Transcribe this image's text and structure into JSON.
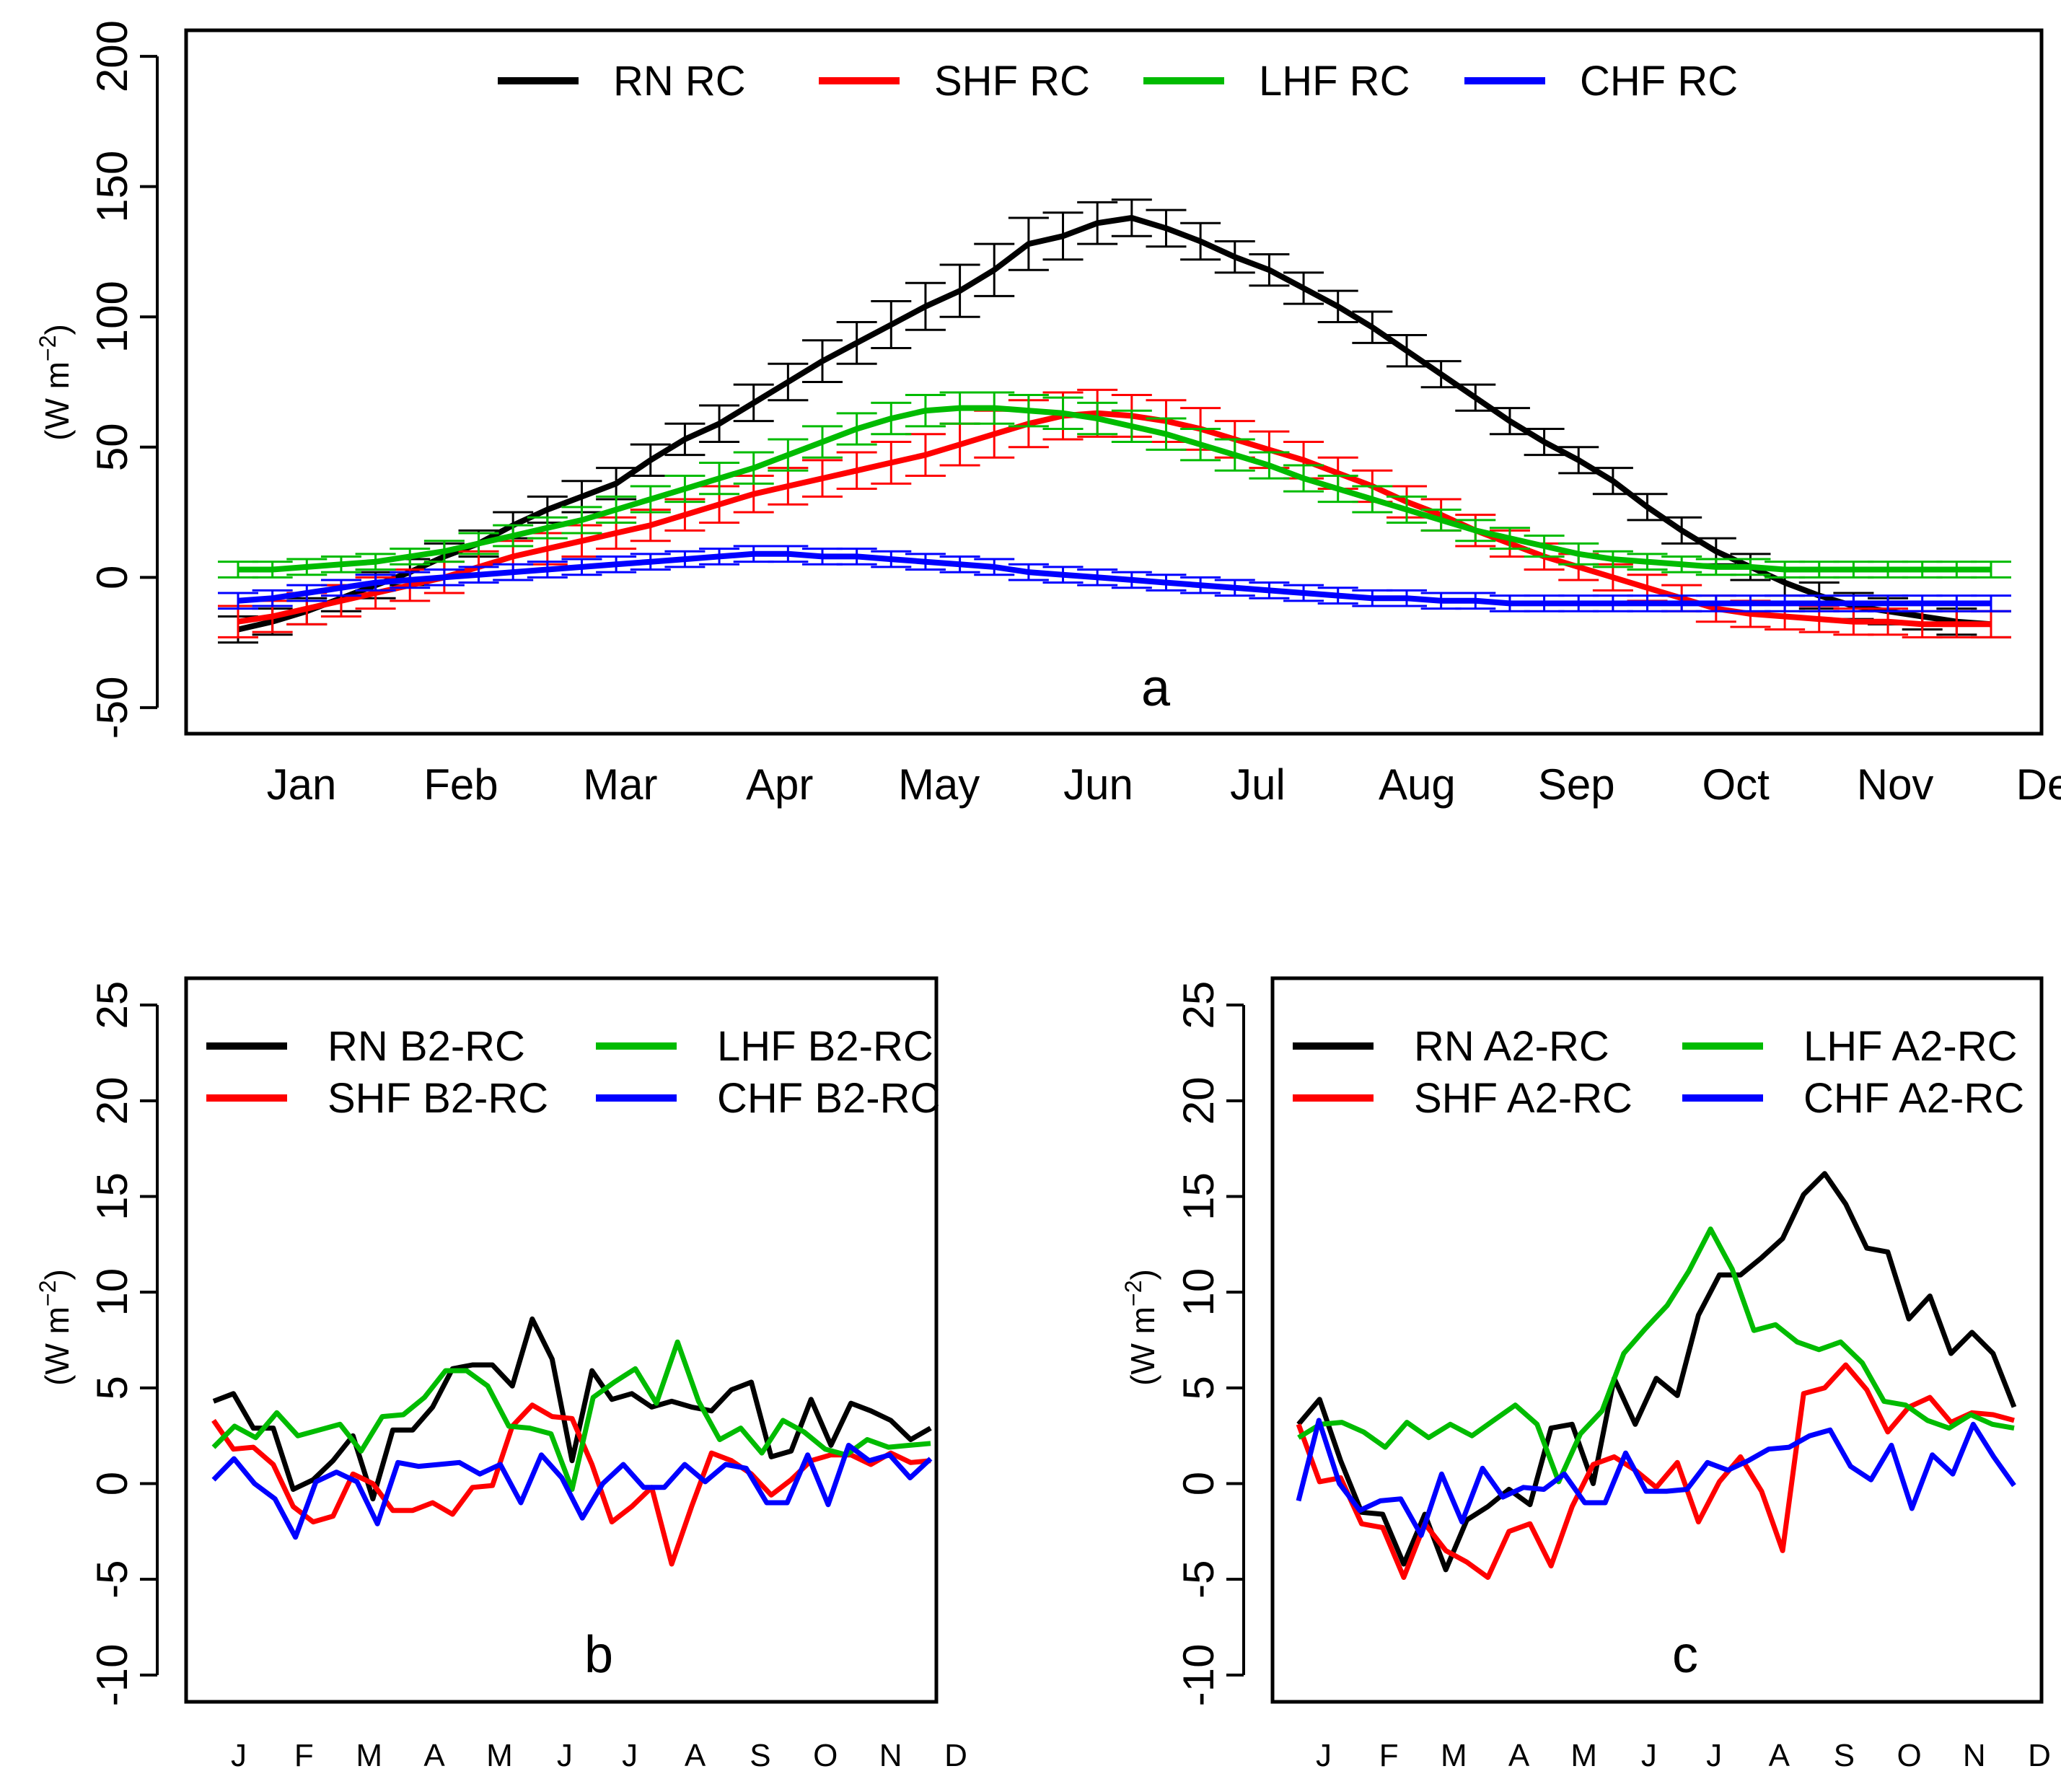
{
  "chart_data": [
    {
      "id": "a",
      "type": "line",
      "label": "a",
      "ylabel": "(W m⁻²)",
      "ylabel_base": "(W m",
      "ylabel_exp": "−2",
      "ylabel_close": ")",
      "ylim": [
        -50,
        200
      ],
      "yticks": [
        -50,
        0,
        50,
        100,
        150,
        200
      ],
      "month_labels": [
        "Jan",
        "Feb",
        "Mar",
        "Apr",
        "May",
        "Jun",
        "Jul",
        "Aug",
        "Sep",
        "Oct",
        "Nov",
        "Dec"
      ],
      "x_count": 36,
      "legend_position": "top",
      "series": [
        {
          "name": "RN RC",
          "color": "#000000",
          "values": [
            -20,
            -17,
            -13,
            -8,
            -3,
            2,
            8,
            13,
            20,
            26,
            31,
            36,
            45,
            53,
            59,
            67,
            75,
            83,
            90,
            97,
            104,
            110,
            118,
            128,
            131,
            136,
            138,
            134,
            129,
            123,
            118,
            111,
            104,
            96,
            87,
            78,
            69,
            60,
            52,
            45,
            37,
            27,
            18,
            10,
            4,
            -2,
            -7,
            -11,
            -13,
            -15,
            -17,
            -18
          ],
          "errors": [
            5,
            5,
            5,
            5,
            5,
            5,
            5,
            5,
            5,
            5,
            6,
            6,
            6,
            6,
            7,
            7,
            7,
            8,
            8,
            9,
            9,
            10,
            10,
            10,
            9,
            8,
            7,
            7,
            7,
            6,
            6,
            6,
            6,
            6,
            6,
            5,
            5,
            5,
            5,
            5,
            5,
            5,
            5,
            5,
            5,
            5,
            5,
            5,
            5,
            5,
            5,
            5
          ]
        },
        {
          "name": "SHF RC",
          "color": "#ff0000",
          "values": [
            -17,
            -15,
            -12,
            -9,
            -6,
            -3,
            0,
            4,
            8,
            11,
            14,
            17,
            20,
            24,
            28,
            32,
            35,
            38,
            41,
            44,
            47,
            51,
            55,
            59,
            62,
            63,
            62,
            60,
            57,
            53,
            49,
            45,
            40,
            35,
            29,
            24,
            18,
            13,
            8,
            4,
            0,
            -4,
            -8,
            -12,
            -14,
            -15,
            -16,
            -17,
            -17,
            -18,
            -18,
            -18
          ],
          "errors": [
            6,
            6,
            6,
            6,
            6,
            6,
            6,
            6,
            6,
            6,
            6,
            6,
            6,
            6,
            7,
            7,
            7,
            7,
            7,
            8,
            8,
            8,
            9,
            9,
            9,
            9,
            8,
            8,
            8,
            7,
            7,
            7,
            6,
            6,
            6,
            6,
            6,
            5,
            5,
            5,
            5,
            5,
            5,
            5,
            5,
            5,
            5,
            5,
            5,
            5,
            5,
            5
          ]
        },
        {
          "name": "LHF RC",
          "color": "#00bb00",
          "values": [
            3,
            3,
            4,
            5,
            6,
            8,
            10,
            13,
            16,
            19,
            22,
            26,
            30,
            34,
            38,
            42,
            47,
            52,
            57,
            61,
            64,
            65,
            65,
            64,
            63,
            61,
            58,
            55,
            51,
            47,
            43,
            38,
            34,
            30,
            26,
            22,
            18,
            15,
            12,
            9,
            7,
            6,
            5,
            4,
            4,
            3,
            3,
            3,
            3,
            3,
            3,
            3
          ],
          "errors": [
            3,
            3,
            3,
            3,
            3,
            3,
            4,
            4,
            4,
            4,
            5,
            5,
            5,
            5,
            6,
            6,
            6,
            6,
            6,
            6,
            6,
            6,
            6,
            6,
            6,
            6,
            6,
            6,
            6,
            6,
            5,
            5,
            5,
            5,
            5,
            4,
            4,
            4,
            4,
            4,
            3,
            3,
            3,
            3,
            3,
            3,
            3,
            3,
            3,
            3,
            3,
            3
          ]
        },
        {
          "name": "CHF RC",
          "color": "#0000ff",
          "values": [
            -9,
            -8,
            -6,
            -4,
            -2,
            -1,
            0,
            1,
            2,
            3,
            4,
            5,
            6,
            7,
            8,
            9,
            9,
            8,
            8,
            7,
            6,
            5,
            4,
            2,
            1,
            0,
            -1,
            -2,
            -3,
            -4,
            -5,
            -6,
            -7,
            -8,
            -8,
            -9,
            -9,
            -10,
            -10,
            -10,
            -10,
            -10,
            -10,
            -10,
            -10,
            -10,
            -10,
            -10,
            -10,
            -10,
            -10,
            -10
          ],
          "errors": [
            3,
            3,
            3,
            3,
            3,
            3,
            3,
            3,
            3,
            3,
            3,
            3,
            3,
            3,
            3,
            3,
            3,
            3,
            3,
            3,
            3,
            3,
            3,
            3,
            3,
            3,
            3,
            3,
            3,
            3,
            3,
            3,
            3,
            3,
            3,
            3,
            3,
            3,
            3,
            3,
            3,
            3,
            3,
            3,
            3,
            3,
            3,
            3,
            3,
            3,
            3,
            3
          ]
        }
      ]
    },
    {
      "id": "b",
      "type": "line",
      "label": "b",
      "ylabel": "(W m⁻²)",
      "ylabel_base": "(W m",
      "ylabel_exp": "−2",
      "ylabel_close": ")",
      "ylim": [
        -10,
        25
      ],
      "yticks": [
        -10,
        -5,
        0,
        5,
        10,
        15,
        20,
        25
      ],
      "month_labels": [
        "J",
        "F",
        "M",
        "A",
        "M",
        "J",
        "J",
        "A",
        "S",
        "O",
        "N",
        "D"
      ],
      "x_count": 52,
      "legend_position": "top-left",
      "series": [
        {
          "name": "RN B2-RC",
          "color": "#000000",
          "values": [
            4.3,
            4.7,
            2.9,
            2.9,
            -0.3,
            0.2,
            1.2,
            2.5,
            -0.8,
            2.8,
            2.8,
            4.0,
            6.0,
            6.2,
            6.2,
            5.1,
            8.6,
            6.5,
            1.2,
            5.9,
            4.4,
            4.7,
            4.0,
            4.3,
            4.0,
            3.8,
            4.9,
            5.3,
            1.4,
            1.7,
            4.4,
            2.0,
            4.2,
            3.8,
            3.3,
            2.3,
            2.9
          ]
        },
        {
          "name": "SHF B2-RC",
          "color": "#ff0000",
          "values": [
            3.3,
            1.8,
            1.9,
            1.0,
            -1.2,
            -2.0,
            -1.7,
            0.5,
            0.0,
            -1.4,
            -1.4,
            -1.0,
            -1.6,
            -0.2,
            -0.1,
            3.0,
            4.1,
            3.5,
            3.4,
            1.0,
            -2.0,
            -1.2,
            -0.2,
            -4.2,
            -1.2,
            1.6,
            1.2,
            0.5,
            -0.6,
            0.2,
            1.2,
            1.5,
            1.5,
            1.0,
            1.6,
            1.1,
            1.2
          ]
        },
        {
          "name": "LHF B2-RC",
          "color": "#00bb00",
          "values": [
            1.9,
            3.0,
            2.4,
            3.7,
            2.5,
            2.8,
            3.1,
            1.7,
            3.5,
            3.6,
            4.5,
            5.9,
            5.9,
            5.1,
            3.0,
            2.9,
            2.6,
            -0.3,
            4.5,
            5.3,
            6.0,
            4.2,
            7.4,
            4.3,
            2.3,
            2.9,
            1.6,
            3.3,
            2.7,
            1.8,
            1.5,
            2.3,
            1.9,
            2.0,
            2.1
          ]
        },
        {
          "name": "CHF B2-RC",
          "color": "#0000ff",
          "values": [
            0.2,
            1.3,
            0.0,
            -0.8,
            -2.8,
            0.1,
            0.6,
            0.1,
            -2.1,
            1.1,
            0.9,
            1.0,
            1.1,
            0.5,
            1.0,
            -1.0,
            1.5,
            0.3,
            -1.8,
            0.0,
            1.0,
            -0.2,
            -0.2,
            1.0,
            0.1,
            1.0,
            0.8,
            -1.0,
            -1.0,
            1.5,
            -1.1,
            2.0,
            1.2,
            1.5,
            0.3,
            1.3
          ]
        }
      ]
    },
    {
      "id": "c",
      "type": "line",
      "label": "c",
      "ylabel": "(W m⁻²)",
      "ylabel_base": "(W m",
      "ylabel_exp": "−2",
      "ylabel_close": ")",
      "ylim": [
        -10,
        25
      ],
      "yticks": [
        -10,
        -5,
        0,
        5,
        10,
        15,
        20,
        25
      ],
      "month_labels": [
        "J",
        "F",
        "M",
        "A",
        "M",
        "J",
        "J",
        "A",
        "S",
        "O",
        "N",
        "D"
      ],
      "x_count": 52,
      "legend_position": "top-left",
      "series": [
        {
          "name": "RN A2-RC",
          "color": "#000000",
          "values": [
            3.1,
            4.4,
            1.2,
            -1.5,
            -1.6,
            -4.2,
            -1.6,
            -4.5,
            -1.9,
            -1.2,
            -0.3,
            -1.1,
            2.9,
            3.1,
            0.0,
            5.5,
            3.1,
            5.5,
            4.6,
            8.8,
            10.9,
            10.9,
            11.8,
            12.8,
            15.1,
            16.2,
            14.6,
            12.3,
            12.1,
            8.6,
            9.8,
            6.8,
            7.9,
            6.8,
            4.0
          ]
        },
        {
          "name": "SHF A2-RC",
          "color": "#ff0000",
          "values": [
            3.1,
            0.1,
            0.3,
            -2.1,
            -2.3,
            -4.9,
            -2.1,
            -3.5,
            -4.1,
            -4.9,
            -2.5,
            -2.1,
            -4.3,
            -1.2,
            1.0,
            1.4,
            0.7,
            -0.2,
            1.1,
            -2.0,
            0.1,
            1.4,
            -0.4,
            -3.5,
            4.7,
            5.0,
            6.2,
            4.9,
            2.7,
            4.0,
            4.5,
            3.2,
            3.7,
            3.6,
            3.3
          ]
        },
        {
          "name": "LHF A2-RC",
          "color": "#00bb00",
          "values": [
            2.4,
            3.1,
            3.2,
            2.7,
            1.9,
            3.2,
            2.4,
            3.1,
            2.5,
            3.3,
            4.1,
            3.1,
            0.1,
            2.6,
            3.8,
            6.8,
            8.1,
            9.3,
            11.1,
            13.3,
            11.2,
            8.0,
            8.3,
            7.4,
            7.0,
            7.4,
            6.3,
            4.3,
            4.1,
            3.3,
            2.9,
            3.6,
            3.1,
            2.9
          ]
        },
        {
          "name": "CHF A2-RC",
          "color": "#0000ff",
          "values": [
            -0.9,
            3.3,
            0.0,
            -1.4,
            -0.9,
            -0.8,
            -2.7,
            0.5,
            -2.0,
            0.8,
            -0.7,
            -0.2,
            -0.3,
            0.5,
            -1.0,
            -1.0,
            1.6,
            -0.4,
            -0.4,
            -0.3,
            1.1,
            0.7,
            1.2,
            1.8,
            1.9,
            2.5,
            2.8,
            0.9,
            0.2,
            2.0,
            -1.3,
            1.5,
            0.5,
            3.1,
            1.4,
            -0.1
          ]
        }
      ]
    }
  ]
}
